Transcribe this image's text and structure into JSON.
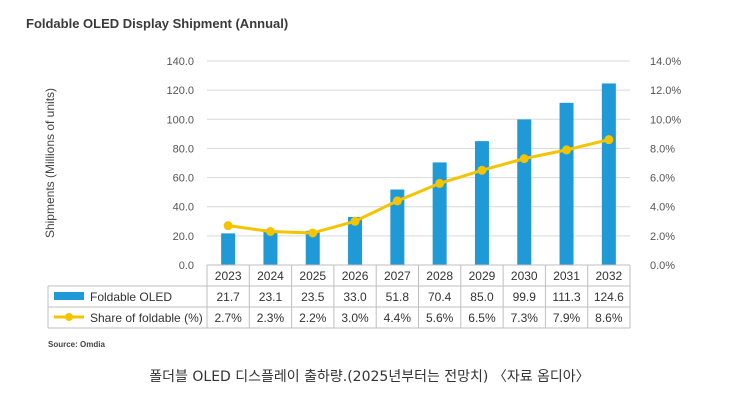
{
  "chart_data": {
    "type": "bar",
    "title": "Foldable OLED Display Shipment (Annual)",
    "ylabel": "Shipments (Millions of units)",
    "categories": [
      "2023",
      "2024",
      "2025",
      "2026",
      "2027",
      "2028",
      "2029",
      "2030",
      "2031",
      "2032"
    ],
    "ylim": [
      0,
      140
    ],
    "y_ticks": [
      "0.0",
      "20.0",
      "40.0",
      "60.0",
      "80.0",
      "100.0",
      "120.0",
      "140.0"
    ],
    "y2lim": [
      0,
      14
    ],
    "y2_ticks": [
      "0.0%",
      "2.0%",
      "4.0%",
      "6.0%",
      "8.0%",
      "10.0%",
      "12.0%",
      "14.0%"
    ],
    "series": [
      {
        "name": "Foldable OLED",
        "type": "bar",
        "axis": "left",
        "color": "#1f9ad6",
        "values": [
          21.7,
          23.1,
          23.5,
          33.0,
          51.8,
          70.4,
          85.0,
          99.9,
          111.3,
          124.6
        ],
        "labels": [
          "21.7",
          "23.1",
          "23.5",
          "33.0",
          "51.8",
          "70.4",
          "85.0",
          "99.9",
          "111.3",
          "124.6"
        ]
      },
      {
        "name": "Share of foldable (%)",
        "type": "line",
        "axis": "right",
        "color": "#f5c400",
        "values": [
          2.7,
          2.3,
          2.2,
          3.0,
          4.4,
          5.6,
          6.5,
          7.3,
          7.9,
          8.6
        ],
        "labels": [
          "2.7%",
          "2.3%",
          "2.2%",
          "3.0%",
          "4.4%",
          "5.6%",
          "6.5%",
          "7.3%",
          "7.9%",
          "8.6%"
        ]
      }
    ],
    "grid": true,
    "legend": "data table below chart",
    "source": "Source: Omdia"
  },
  "caption": "폴더블 OLED 디스플레이 출하량.(2025년부터는 전망치) 〈자료 옴디아〉"
}
